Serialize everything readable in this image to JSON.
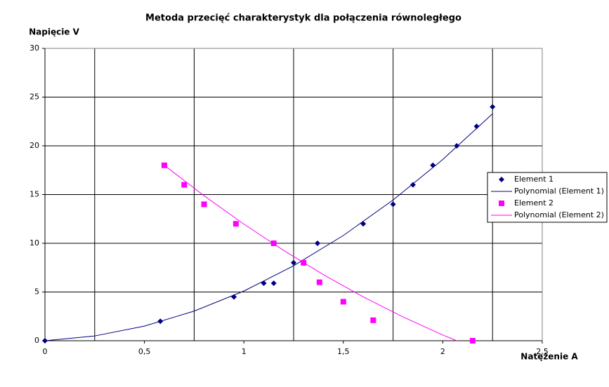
{
  "chart_data": {
    "type": "scatter",
    "title": "Metoda przecięć charakterystyk dla połączenia równoległego",
    "y_label": "Napięcie V",
    "x_label": "Natężenie A",
    "xlim": [
      0,
      2.5
    ],
    "ylim": [
      0,
      30
    ],
    "xticks": [
      0,
      {
        "value": 0.5,
        "label": "0,5"
      },
      1,
      {
        "value": 1.5,
        "label": "1,5"
      },
      2,
      {
        "value": 2.5,
        "label": "2,5"
      }
    ],
    "yticks": [
      0,
      5,
      10,
      15,
      20,
      25,
      30
    ],
    "xgrid": [
      0.25,
      0.75,
      1.25,
      1.75,
      2.25
    ],
    "grid": true,
    "legend": "right",
    "series": [
      {
        "name": "Element 1",
        "kind": "points",
        "marker": "diamond",
        "color": "#000080",
        "x": [
          0,
          0.58,
          0.95,
          1.1,
          1.15,
          1.25,
          1.37,
          1.6,
          1.75,
          1.85,
          1.95,
          2.07,
          2.17,
          2.25
        ],
        "values": [
          0,
          2,
          4.5,
          5.9,
          5.9,
          8,
          10,
          12,
          14,
          16,
          18,
          20,
          22,
          24
        ]
      },
      {
        "name": "Polynomial (Element 1)",
        "kind": "line",
        "color": "#000080",
        "x": [
          0,
          0.25,
          0.5,
          0.75,
          1,
          1.25,
          1.5,
          1.75,
          2,
          2.25
        ],
        "values": [
          0,
          0.49,
          1.5,
          3.04,
          5.1,
          7.69,
          10.8,
          14.44,
          18.6,
          23.29
        ]
      },
      {
        "name": "Element 2",
        "kind": "points",
        "marker": "square",
        "color": "#ff00ff",
        "x": [
          0.6,
          0.7,
          0.8,
          0.96,
          1.15,
          1.3,
          1.38,
          1.5,
          1.65,
          2.15
        ],
        "values": [
          18,
          16,
          14,
          12,
          10,
          8,
          6,
          4,
          2.1,
          0
        ]
      },
      {
        "name": "Polynomial (Element 2)",
        "kind": "line",
        "color": "#ff00ff",
        "x": [
          0.6,
          0.8,
          1.0,
          1.2,
          1.4,
          1.6,
          1.8,
          2.0,
          2.07
        ],
        "values": [
          18,
          14.88,
          11.97,
          9.27,
          6.78,
          4.5,
          2.44,
          0.59,
          0
        ]
      }
    ]
  }
}
